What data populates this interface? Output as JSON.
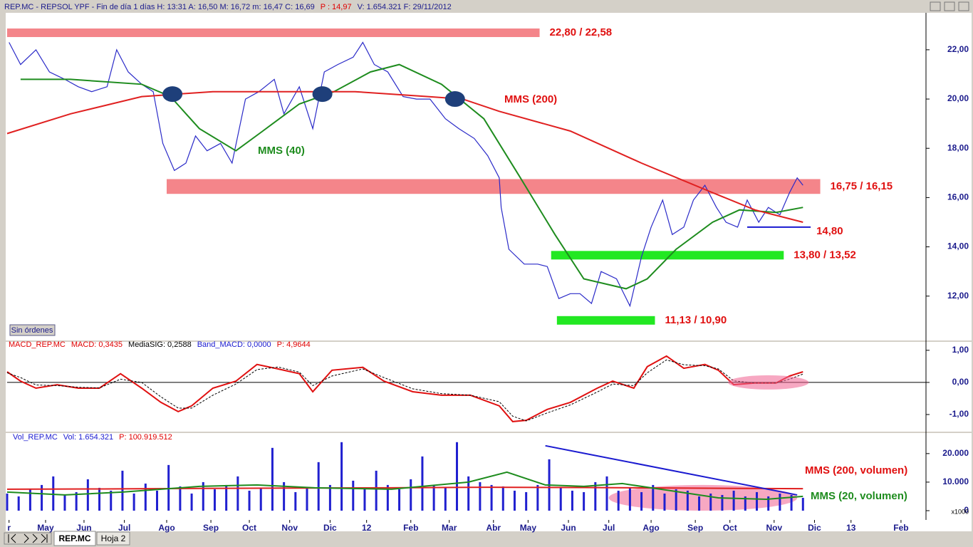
{
  "window": {
    "title": "REP.MC - REPSOL YPF - Fin de día 1 días  H: 13:31  A: 16,50  M: 16,72  m: 16,47  C: 16,69",
    "p_label": "P : 14,97",
    "tail": "V: 1.654.321  F: 29/11/2012"
  },
  "orders_button": "Sin órdenes",
  "tabs": [
    "REP.MC",
    "Hoja 2"
  ],
  "chart_data": [
    {
      "type": "line",
      "ylim": [
        10.2,
        23.5
      ],
      "yticks": [
        {
          "value": 12,
          "label": "12,00"
        },
        {
          "value": 14,
          "label": "14,00"
        },
        {
          "value": 16,
          "label": "16,00"
        },
        {
          "value": 18,
          "label": "18,00"
        },
        {
          "value": 20,
          "label": "20,00"
        },
        {
          "value": 22,
          "label": "22,00"
        }
      ],
      "series": [
        {
          "color": "#2a2ac8",
          "x": [
            1,
            7,
            15,
            22,
            30,
            37,
            44,
            52,
            57,
            63,
            70,
            76,
            81,
            87,
            93,
            98,
            104,
            111,
            117,
            124,
            131,
            139,
            144,
            152,
            159,
            165,
            172,
            180,
            185,
            191,
            198,
            206,
            213,
            220,
            228,
            235,
            243,
            250,
            256,
            257,
            261,
            269,
            276,
            281,
            287,
            293,
            298,
            304,
            309,
            317,
            324,
            330,
            335,
            341,
            346,
            352,
            357,
            363,
            369,
            374,
            380,
            385,
            391,
            396,
            402,
            407,
            411,
            414
          ],
          "values": [
            22.3,
            21.4,
            22.0,
            21.1,
            20.8,
            20.5,
            20.3,
            20.5,
            22.0,
            21.1,
            20.6,
            20.3,
            18.2,
            17.1,
            17.4,
            18.5,
            17.9,
            18.2,
            17.4,
            20.0,
            20.3,
            20.8,
            19.4,
            20.5,
            18.8,
            21.1,
            21.4,
            21.7,
            22.3,
            21.4,
            21.1,
            20.1,
            20.0,
            20.0,
            19.2,
            18.8,
            18.4,
            17.7,
            16.8,
            15.6,
            13.9,
            13.3,
            13.3,
            13.2,
            11.9,
            12.1,
            12.1,
            11.7,
            13.0,
            12.7,
            11.6,
            13.6,
            14.8,
            15.9,
            14.5,
            14.8,
            15.9,
            16.5,
            15.6,
            15.0,
            14.8,
            15.9,
            15.0,
            15.6,
            15.3,
            16.2,
            16.8,
            16.5
          ]
        },
        {
          "name": "MMS (40)",
          "color": "#1e8c1e",
          "x": [
            7,
            33,
            70,
            85,
            100,
            119,
            133,
            152,
            170,
            189,
            204,
            226,
            248,
            267,
            285,
            300,
            322,
            333,
            348,
            367,
            381,
            400,
            414
          ],
          "values": [
            20.8,
            20.8,
            20.6,
            20.1,
            18.8,
            17.9,
            18.7,
            19.8,
            20.3,
            21.1,
            21.4,
            20.6,
            19.2,
            16.8,
            14.5,
            12.7,
            12.3,
            12.7,
            13.9,
            15.0,
            15.5,
            15.4,
            15.6
          ]
        },
        {
          "name": "MMS (200)",
          "color": "#e02020",
          "x": [
            0,
            33,
            70,
            107,
            144,
            181,
            219,
            237,
            256,
            293,
            330,
            367,
            389,
            414
          ],
          "values": [
            18.6,
            19.4,
            20.1,
            20.3,
            20.3,
            20.3,
            20.1,
            20.0,
            19.5,
            18.7,
            17.4,
            16.2,
            15.5,
            15.0
          ]
        }
      ],
      "zones": [
        {
          "label": "22,80 / 22,58",
          "high": 22.8,
          "low": 22.58,
          "x": [
            0,
            277
          ],
          "color": "#f4858a"
        },
        {
          "label": "16,75 / 16,15",
          "high": 16.75,
          "low": 16.15,
          "x": [
            83,
            423
          ],
          "color": "#f4858a"
        },
        {
          "label": "13,80 / 13,52",
          "high": 13.8,
          "low": 13.52,
          "x": [
            283,
            404
          ],
          "color": "#22e822"
        },
        {
          "label": "11,13 / 10,90",
          "high": 11.13,
          "low": 10.9,
          "x": [
            286,
            337
          ],
          "color": "#22e822"
        }
      ],
      "support": {
        "label": "14,80",
        "value": 14.8,
        "x": [
          385,
          418
        ]
      },
      "crossings": [
        {
          "x": 86,
          "y": 20.2
        },
        {
          "x": 164,
          "y": 20.2
        },
        {
          "x": 233,
          "y": 20.0
        }
      ]
    },
    {
      "type": "line",
      "name": "MACD_REP.MC",
      "header": [
        "MACD: 0,3435",
        "MediaSIG: 0,2588",
        "Band_MACD: 0,0000",
        "P: 4,9644"
      ],
      "ylim": [
        -1.51,
        1.24
      ],
      "yticks": [
        {
          "value": -1,
          "label": "-1,00"
        },
        {
          "value": 0,
          "label": "0,00"
        },
        {
          "value": 1,
          "label": "1,00"
        }
      ],
      "series": [
        {
          "color": "#e01010",
          "x": [
            0,
            7,
            15,
            26,
            37,
            48,
            59,
            70,
            80,
            89,
            96,
            107,
            119,
            130,
            141,
            152,
            159,
            169,
            185,
            196,
            211,
            226,
            241,
            256,
            263,
            270,
            281,
            293,
            307,
            315,
            326,
            333,
            343,
            352,
            363,
            370,
            378,
            389,
            400,
            407,
            414
          ],
          "values": [
            0.33,
            0.04,
            -0.18,
            -0.07,
            -0.18,
            -0.18,
            0.27,
            -0.18,
            -0.62,
            -0.91,
            -0.73,
            -0.18,
            0.04,
            0.56,
            0.42,
            0.27,
            -0.29,
            0.38,
            0.47,
            0.04,
            -0.29,
            -0.4,
            -0.4,
            -0.73,
            -1.22,
            -1.18,
            -0.84,
            -0.62,
            -0.18,
            0.04,
            -0.18,
            0.49,
            0.82,
            0.44,
            0.56,
            0.38,
            -0.07,
            -0.02,
            -0.02,
            0.2,
            0.33
          ]
        },
        {
          "color": "#000000",
          "dash": true,
          "x": [
            0,
            7,
            15,
            26,
            37,
            48,
            59,
            70,
            80,
            89,
            96,
            107,
            119,
            130,
            141,
            152,
            159,
            169,
            185,
            196,
            211,
            226,
            241,
            256,
            263,
            270,
            281,
            293,
            307,
            315,
            326,
            333,
            343,
            352,
            363,
            370,
            378,
            389,
            400,
            407,
            414
          ],
          "values": [
            0.3,
            0.15,
            -0.08,
            -0.1,
            -0.15,
            -0.17,
            0.1,
            0.0,
            -0.45,
            -0.8,
            -0.8,
            -0.4,
            -0.05,
            0.4,
            0.48,
            0.32,
            -0.1,
            0.2,
            0.42,
            0.15,
            -0.2,
            -0.35,
            -0.4,
            -0.6,
            -1.05,
            -1.2,
            -0.95,
            -0.7,
            -0.3,
            -0.05,
            -0.1,
            0.3,
            0.7,
            0.55,
            0.52,
            0.42,
            0.05,
            -0.02,
            -0.02,
            0.1,
            0.26
          ]
        }
      ],
      "highlight": {
        "x": [
          375,
          417
        ],
        "y": [
          -0.2,
          0.2
        ]
      }
    },
    {
      "type": "bar",
      "name": "Vol_REP.MC",
      "header": [
        "Vol: 1.654.321",
        "P: 100.919.512"
      ],
      "unit": "x1000",
      "color": "#2020d0",
      "ylim": [
        -2500,
        26700
      ],
      "yticks": [
        0,
        {
          "value": 10000,
          "label": "10.000"
        },
        {
          "value": 20000,
          "label": "20.000"
        }
      ],
      "xlim": [
        0,
        478
      ],
      "xticks": [
        {
          "value": 1,
          "label": "r"
        },
        {
          "value": 20,
          "label": "May"
        },
        {
          "value": 40,
          "label": "Jun"
        },
        {
          "value": 61,
          "label": "Jul"
        },
        {
          "value": 83,
          "label": "Ago"
        },
        {
          "value": 106,
          "label": "Sep"
        },
        {
          "value": 126,
          "label": "Oct"
        },
        {
          "value": 147,
          "label": "Nov"
        },
        {
          "value": 168,
          "label": "Dic"
        },
        {
          "value": 187,
          "label": "12"
        },
        {
          "value": 210,
          "label": "Feb"
        },
        {
          "value": 230,
          "label": "Mar"
        },
        {
          "value": 253,
          "label": "Abr"
        },
        {
          "value": 271,
          "label": "May"
        },
        {
          "value": 292,
          "label": "Jun"
        },
        {
          "value": 313,
          "label": "Jul"
        },
        {
          "value": 335,
          "label": "Ago"
        },
        {
          "value": 358,
          "label": "Sep"
        },
        {
          "value": 376,
          "label": "Oct"
        },
        {
          "value": 399,
          "label": "Nov"
        },
        {
          "value": 420,
          "label": "Dic"
        },
        {
          "value": 439,
          "label": "13"
        },
        {
          "value": 465,
          "label": "Feb"
        }
      ],
      "x": [
        0,
        6,
        12,
        18,
        24,
        30,
        36,
        42,
        48,
        54,
        60,
        66,
        72,
        78,
        84,
        90,
        96,
        102,
        108,
        114,
        120,
        126,
        132,
        138,
        144,
        150,
        156,
        162,
        168,
        174,
        180,
        186,
        192,
        198,
        204,
        210,
        216,
        222,
        228,
        234,
        240,
        246,
        252,
        258,
        264,
        270,
        276,
        282,
        288,
        294,
        300,
        306,
        312,
        318,
        324,
        330,
        336,
        342,
        348,
        354,
        360,
        366,
        372,
        378,
        384,
        390,
        396,
        402,
        408,
        414
      ],
      "values": [
        6000,
        5000,
        7500,
        9000,
        12000,
        5500,
        6500,
        11000,
        8000,
        7000,
        14000,
        6000,
        9500,
        7000,
        16000,
        8500,
        6000,
        10000,
        7500,
        9000,
        12000,
        7000,
        8000,
        22000,
        10000,
        6500,
        8000,
        17000,
        9000,
        24000,
        10500,
        8000,
        14000,
        9000,
        7500,
        11000,
        19000,
        9000,
        8000,
        24000,
        12000,
        10000,
        9000,
        8500,
        7000,
        6500,
        9000,
        18000,
        8000,
        7000,
        6500,
        10000,
        12000,
        7000,
        8000,
        6500,
        9000,
        6000,
        7500,
        7000,
        5000,
        6000,
        5500,
        7000,
        5000,
        6500,
        5000,
        6000,
        5500,
        4500
      ],
      "series": [
        {
          "name": "MMS (200, volumen)",
          "color": "#e02020",
          "x": [
            0,
            50,
            100,
            150,
            200,
            250,
            300,
            350,
            414
          ],
          "values": [
            7500,
            7600,
            7800,
            7900,
            8000,
            8200,
            8100,
            7900,
            7700
          ]
        },
        {
          "name": "MMS (20, volumen)",
          "color": "#1e8c1e",
          "x": [
            0,
            30,
            60,
            100,
            130,
            160,
            200,
            240,
            260,
            280,
            300,
            320,
            345,
            370,
            395,
            414
          ],
          "values": [
            6500,
            5500,
            6500,
            8500,
            9000,
            8000,
            7500,
            10000,
            13500,
            9000,
            8500,
            9500,
            7000,
            4500,
            4000,
            5000
          ]
        }
      ],
      "trend": {
        "x": [
          280,
          411
        ],
        "y": [
          22750,
          5500
        ]
      },
      "highlight": {
        "x": [
          313,
          411
        ],
        "y": [
          0,
          9000
        ]
      }
    }
  ]
}
